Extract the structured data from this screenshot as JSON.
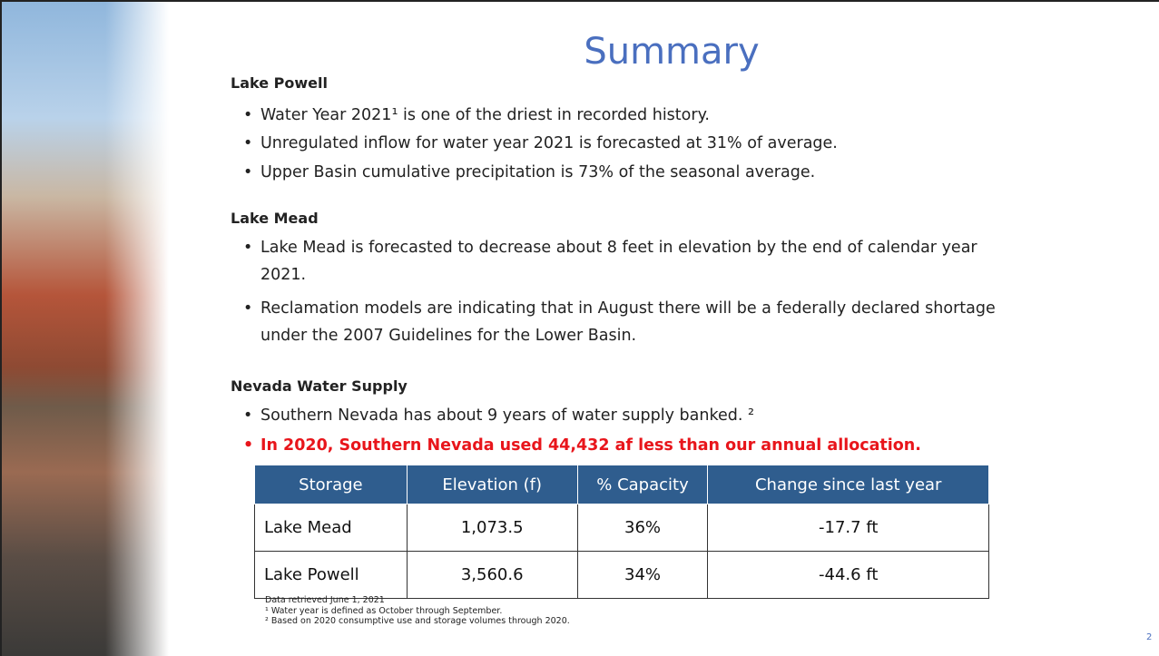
{
  "title": "Summary",
  "sections": [
    {
      "heading": "Lake Powell",
      "bullets": [
        "Water Year 2021¹ is one of the driest in recorded history.",
        "Unregulated inflow for water year 2021 is forecasted at 31% of average.",
        "Upper Basin cumulative precipitation is 73% of the seasonal average."
      ]
    },
    {
      "heading": "Lake Mead",
      "bullets": [
        "Lake Mead is forecasted to decrease about 8 feet in elevation by the end of calendar year 2021.",
        "Reclamation models are indicating that in August there will be a federally declared shortage under the 2007 Guidelines for the Lower Basin."
      ]
    },
    {
      "heading": "Nevada Water Supply",
      "bullets": [
        "Southern Nevada has about 9 years of water supply banked. ²",
        "In 2020, Southern Nevada used 44,432 af less than our annual allocation."
      ]
    }
  ],
  "table": {
    "headers": [
      "Storage",
      "Elevation (f)",
      "% Capacity",
      "Change since last year"
    ],
    "rows": [
      [
        "Lake Mead",
        "1,073.5",
        "36%",
        "-17.7 ft"
      ],
      [
        "Lake Powell",
        "3,560.6",
        "34%",
        "-44.6 ft"
      ]
    ]
  },
  "footnotes": [
    "Data retrieved June 1, 2021",
    "¹ Water year is defined as October through September.",
    "² Based on 2020 consumptive use and storage volumes through 2020."
  ],
  "page_number": "2"
}
